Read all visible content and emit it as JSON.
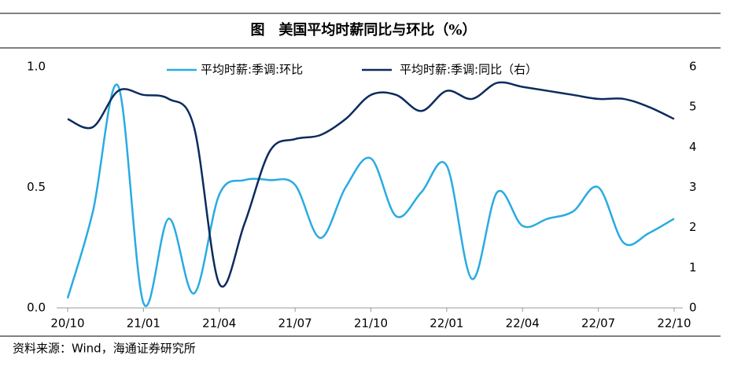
{
  "chart_data": {
    "type": "line",
    "title": "图　美国平均时薪同比与环比（%）",
    "source": "资料来源：Wind，海通证券研究所",
    "categories": [
      "20/10",
      null,
      null,
      "21/01",
      null,
      null,
      "21/04",
      null,
      null,
      "21/07",
      null,
      null,
      "21/10",
      null,
      null,
      "22/01",
      null,
      null,
      "22/04",
      null,
      null,
      "22/07",
      null,
      null,
      "22/10"
    ],
    "series": [
      {
        "name": "平均时薪:季调:环比",
        "color": "#29abe2",
        "values": [
          0.04,
          0.4,
          0.92,
          0.02,
          0.37,
          0.06,
          0.47,
          0.53,
          0.53,
          0.51,
          0.29,
          0.5,
          0.62,
          0.38,
          0.48,
          0.59,
          0.12,
          0.48,
          0.34,
          0.37,
          0.4,
          0.5,
          0.27,
          0.31,
          0.37
        ]
      },
      {
        "name": "平均时薪:季调:同比（右）",
        "color": "#0d2b5e",
        "axis": "y2",
        "values": [
          4.7,
          4.5,
          5.4,
          5.3,
          5.2,
          4.5,
          0.6,
          2.1,
          3.9,
          4.2,
          4.3,
          4.7,
          5.3,
          5.3,
          4.9,
          5.4,
          5.2,
          5.6,
          5.5,
          5.4,
          5.3,
          5.2,
          5.2,
          5.0,
          4.7
        ]
      }
    ],
    "ylim": [
      0,
      1
    ],
    "yticks": [
      {
        "value": 0,
        "label": "0.0"
      },
      {
        "value": 0.5,
        "label": "0.5"
      },
      {
        "value": 1,
        "label": "1.0"
      }
    ],
    "y2lim": [
      0,
      6
    ],
    "y2ticks": [
      0,
      1,
      2,
      3,
      4,
      5,
      6
    ]
  }
}
